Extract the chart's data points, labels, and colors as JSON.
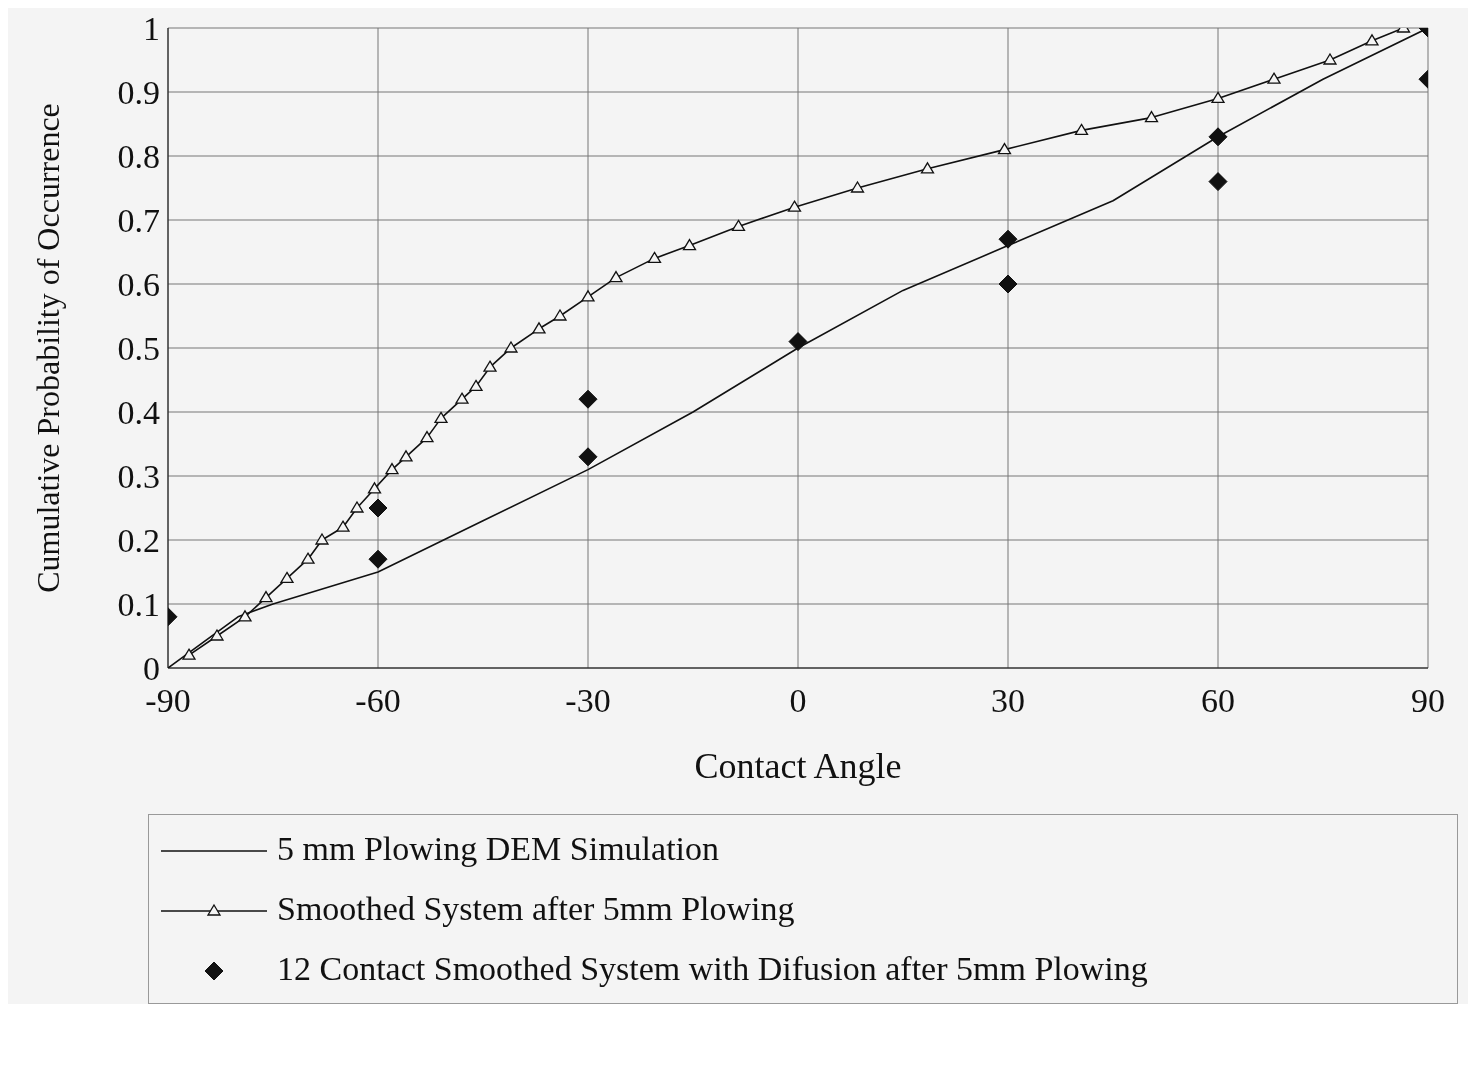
{
  "chart_data": {
    "type": "line",
    "xlabel": "Contact Angle",
    "ylabel": "Cumulative Probability of Occurrence",
    "xlim": [
      -90,
      90
    ],
    "xticks": [
      -90,
      -60,
      -30,
      0,
      30,
      60,
      90
    ],
    "ylim": [
      0,
      1
    ],
    "yticks": [
      0,
      0.1,
      0.2,
      0.3,
      0.4,
      0.5,
      0.6,
      0.7,
      0.8,
      0.9,
      1
    ],
    "grid": true,
    "legend": "bottom",
    "series": [
      {
        "name": "5 mm Plowing DEM Simulation",
        "marker": "none",
        "color": "#111111",
        "x": [
          -90,
          -80,
          -75,
          -60,
          -45,
          -30,
          -15,
          0,
          15,
          30,
          45,
          60,
          75,
          90
        ],
        "values": [
          0,
          0.08,
          0.1,
          0.15,
          0.23,
          0.31,
          0.4,
          0.5,
          0.59,
          0.66,
          0.73,
          0.83,
          0.92,
          1
        ]
      },
      {
        "name": "Smoothed System after 5mm Plowing",
        "type": "line",
        "marker": "triangle",
        "color": "#111111",
        "x": [
          -87,
          -83,
          -79,
          -76,
          -73,
          -70,
          -68,
          -65,
          -63,
          -60.5,
          -58,
          -56,
          -53,
          -51,
          -48,
          -46,
          -44,
          -41,
          -37,
          -34,
          -30,
          -26,
          -20.5,
          -15.5,
          -8.5,
          -0.5,
          8.5,
          18.5,
          29.5,
          40.5,
          50.5,
          60,
          68,
          76,
          82,
          86.5
        ],
        "values": [
          0.02,
          0.05,
          0.08,
          0.11,
          0.14,
          0.17,
          0.2,
          0.22,
          0.25,
          0.28,
          0.31,
          0.33,
          0.36,
          0.39,
          0.42,
          0.44,
          0.47,
          0.5,
          0.53,
          0.55,
          0.58,
          0.61,
          0.64,
          0.66,
          0.69,
          0.72,
          0.75,
          0.78,
          0.81,
          0.84,
          0.86,
          0.89,
          0.92,
          0.95,
          0.98,
          1
        ]
      },
      {
        "name": "12 Contact Smoothed System with Difusion after 5mm Plowing",
        "type": "scatter",
        "marker": "diamond",
        "color": "#111111",
        "x": [
          -90,
          -60,
          -60,
          -30,
          -30,
          0,
          30,
          30,
          60,
          60,
          90,
          90
        ],
        "values": [
          0.08,
          0.25,
          0.17,
          0.42,
          0.33,
          0.51,
          0.67,
          0.6,
          0.83,
          0.76,
          1,
          0.92
        ]
      }
    ]
  }
}
